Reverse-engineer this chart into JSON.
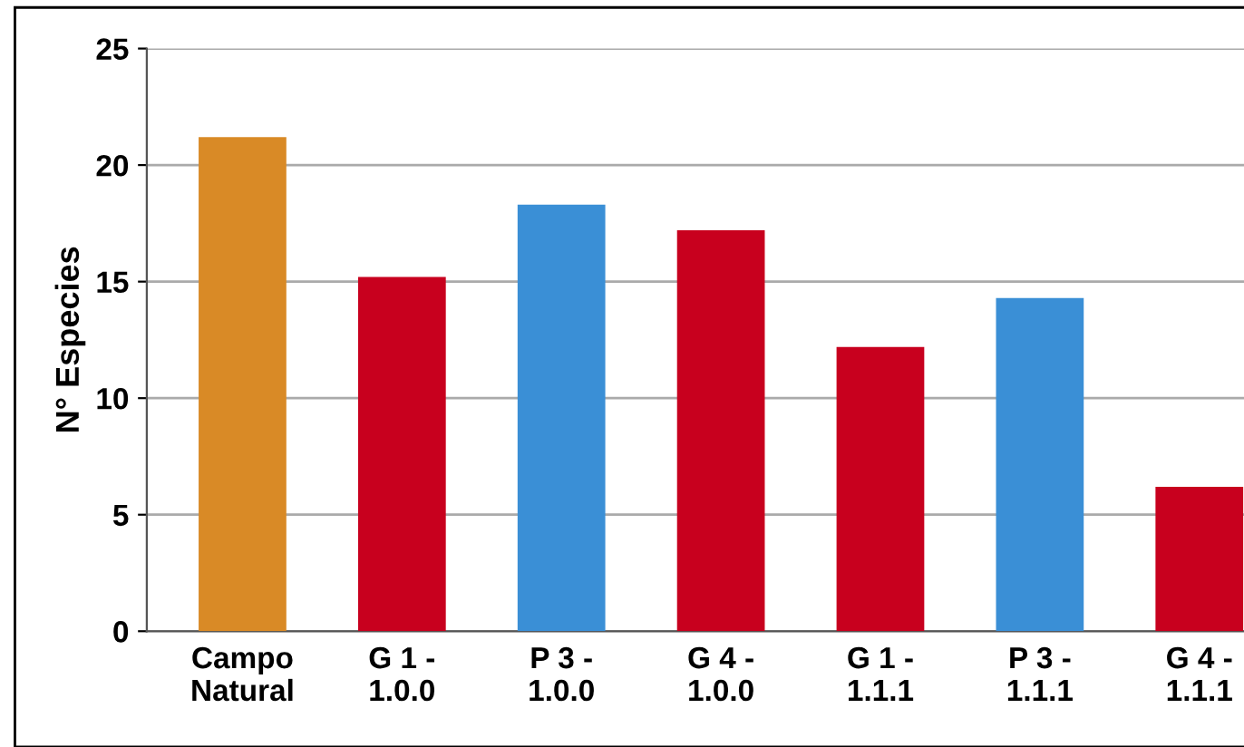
{
  "chart_data": {
    "type": "bar",
    "ylabel": "N° Especies",
    "categories": [
      "Campo\nNatural",
      "G 1 -\n1.0.0",
      "P 3 -\n1.0.0",
      "G 4 -\n1.0.0",
      "G 1 -\n1.1.1",
      "P 3 -\n1.1.1",
      "G 4 -\n1.1.1"
    ],
    "values": [
      21.2,
      15.2,
      18.3,
      17.2,
      12.2,
      14.3,
      6.2
    ],
    "colors": [
      "#d98a26",
      "#c8001e",
      "#3a8fd6",
      "#c8001e",
      "#c8001e",
      "#3a8fd6",
      "#c8001e"
    ],
    "ylim": [
      0,
      25
    ],
    "yticks": [
      0,
      5,
      10,
      15,
      20,
      25
    ],
    "grid": "y"
  }
}
